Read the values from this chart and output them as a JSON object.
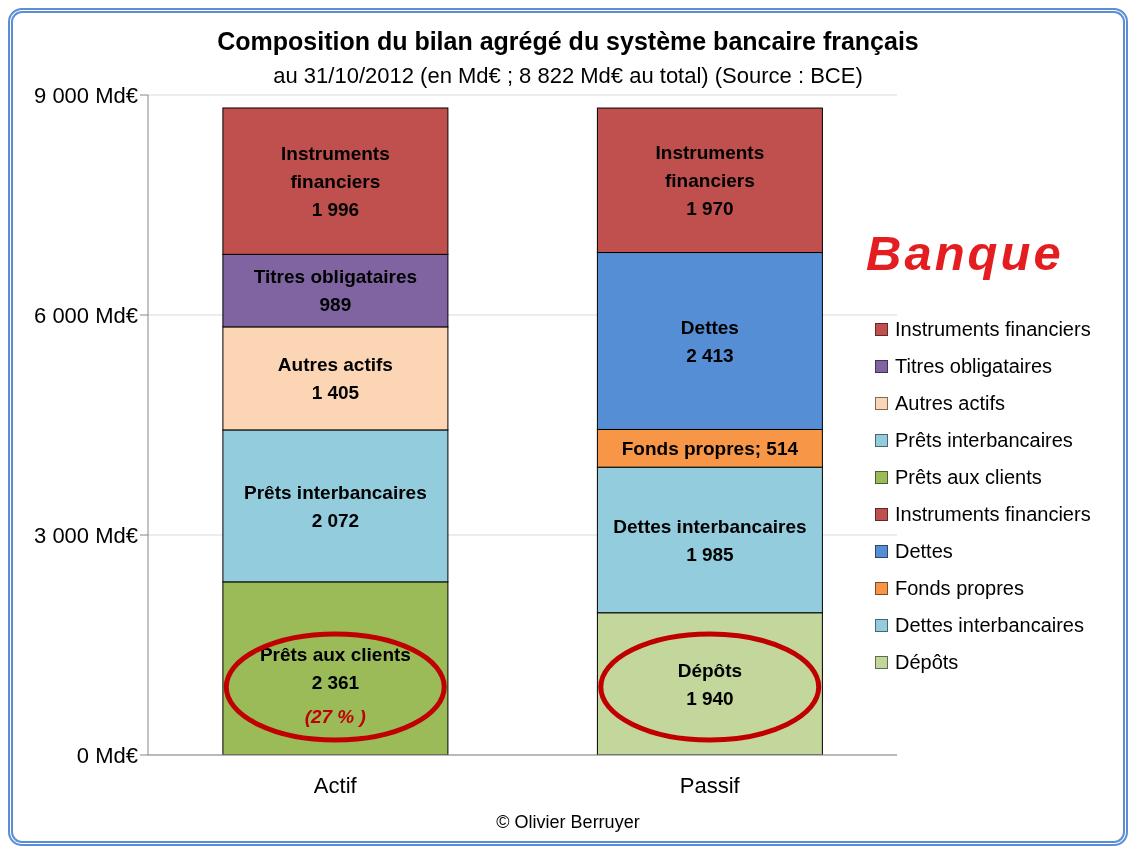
{
  "chart_data": {
    "type": "bar",
    "stacked": true,
    "title": "Composition du bilan agrégé du système bancaire français",
    "subtitle": "au 31/10/2012 (en Md€ ; 8 822 Md€ au total) (Source : BCE)",
    "categories": [
      "Actif",
      "Passif"
    ],
    "series": [
      {
        "name": "Dépôts",
        "color": "#c3d69b",
        "values": [
          null,
          1940
        ],
        "value_labels": [
          null,
          "1 940"
        ]
      },
      {
        "name": "Dettes interbancaires",
        "color": "#93cddd",
        "values": [
          null,
          1985
        ],
        "value_labels": [
          null,
          "1 985"
        ]
      },
      {
        "name": "Fonds propres",
        "color": "#f79646",
        "values": [
          null,
          514
        ],
        "value_labels": [
          null,
          "Fonds propres; 514"
        ]
      },
      {
        "name": "Dettes",
        "color": "#558ed5",
        "values": [
          null,
          2413
        ],
        "value_labels": [
          null,
          "2 413"
        ]
      },
      {
        "name": "Instruments financiers",
        "color": "#c0504d",
        "values": [
          null,
          1970
        ],
        "value_labels": [
          null,
          "1 970"
        ]
      },
      {
        "name": "Prêts aux clients",
        "color": "#9bbb59",
        "values": [
          2361,
          null
        ],
        "value_labels": [
          "2 361",
          null
        ]
      },
      {
        "name": "Prêts interbancaires",
        "color": "#93cddd",
        "values": [
          2072,
          null
        ],
        "value_labels": [
          "2 072",
          null
        ]
      },
      {
        "name": "Autres actifs",
        "color": "#fcd5b5",
        "values": [
          1405,
          null
        ],
        "value_labels": [
          "1 405",
          null
        ]
      },
      {
        "name": "Titres obligataires",
        "color": "#8064a2",
        "values": [
          989,
          null
        ],
        "value_labels": [
          "989",
          null
        ]
      },
      {
        "name": "Instruments financiers",
        "color": "#c0504d",
        "values": [
          1996,
          null
        ],
        "value_labels": [
          "1 996",
          null
        ]
      }
    ],
    "ylim": [
      0,
      9000
    ],
    "yticks": [
      {
        "value": 0,
        "label": "0 Md€"
      },
      {
        "value": 3000,
        "label": "3 000 Md€"
      },
      {
        "value": 6000,
        "label": "6 000 Md€"
      },
      {
        "value": 9000,
        "label": "9 000 Md€"
      }
    ],
    "grid": "y",
    "legend": "right",
    "annotations": [
      "(27 % )",
      "Banque",
      "© Olivier Berruyer"
    ]
  }
}
